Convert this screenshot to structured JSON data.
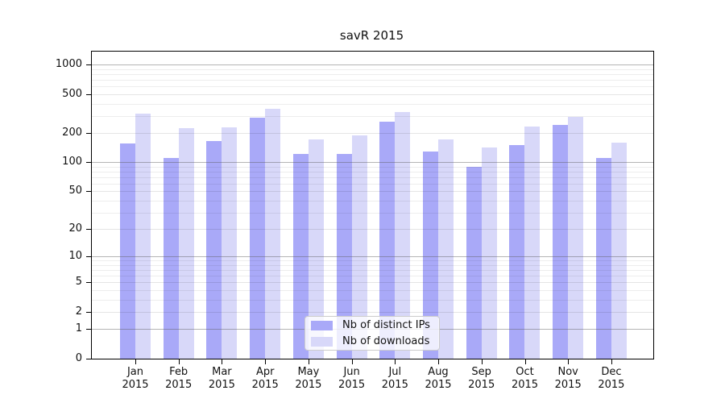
{
  "chart_data": {
    "type": "bar",
    "title": "savR 2015",
    "categories": [
      "Jan",
      "Feb",
      "Mar",
      "Apr",
      "May",
      "Jun",
      "Jul",
      "Aug",
      "Sep",
      "Oct",
      "Nov",
      "Dec"
    ],
    "category_year": "2015",
    "series": [
      {
        "name": "Nb of distinct IPs",
        "color": "#a9a9f8",
        "values": [
          157,
          111,
          165,
          285,
          122,
          122,
          261,
          130,
          89,
          150,
          243,
          110
        ]
      },
      {
        "name": "Nb of downloads",
        "color": "#d8d8f9",
        "values": [
          313,
          223,
          228,
          355,
          172,
          189,
          326,
          172,
          143,
          233,
          292,
          160
        ]
      }
    ],
    "xlabel": "",
    "ylabel": "",
    "yscale": "log1p",
    "ylim": [
      0,
      1360
    ],
    "yticks": [
      0,
      1,
      2,
      5,
      10,
      20,
      50,
      100,
      200,
      500,
      1000
    ],
    "yticks_minor": [
      3,
      4,
      6,
      7,
      8,
      9,
      30,
      40,
      60,
      70,
      80,
      90,
      300,
      400,
      600,
      700,
      800,
      900
    ],
    "grid": "horizontal",
    "legend_position": "bottom-center"
  }
}
